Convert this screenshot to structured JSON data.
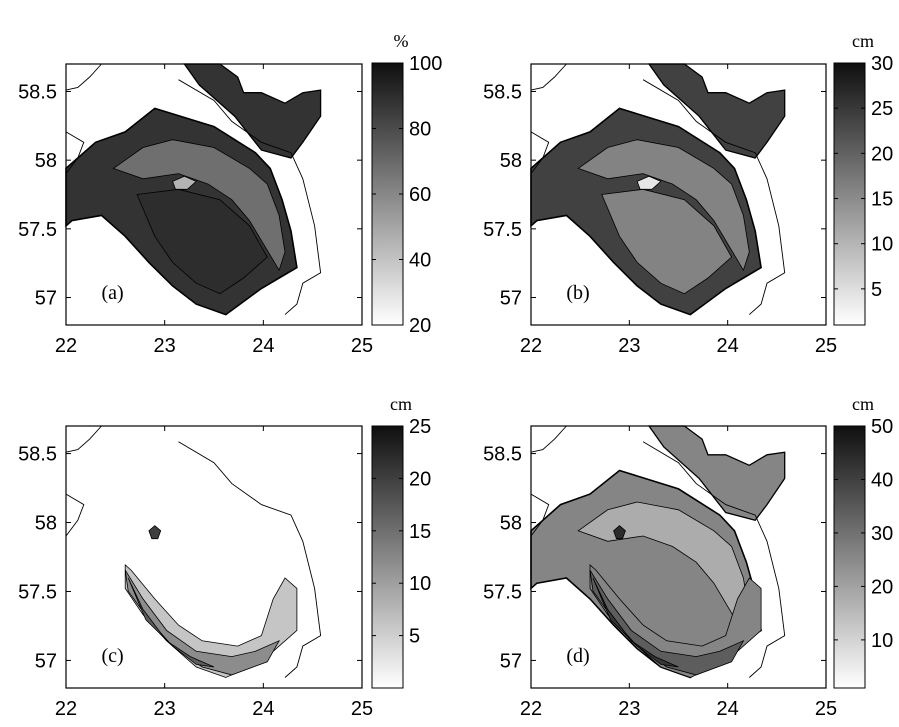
{
  "chart_data": [
    {
      "type": "heatmap",
      "panel_label": "(a)",
      "colorbar_unit": "%",
      "colorbar_ticks": [
        "20",
        "40",
        "60",
        "80",
        "100"
      ],
      "colorbar_range": [
        20,
        100
      ],
      "xlim": [
        22,
        25
      ],
      "ylim": [
        56.8,
        58.7
      ],
      "xticks": [
        "22",
        "23",
        "24",
        "25"
      ],
      "yticks": [
        "57",
        "57.5",
        "58",
        "58.5"
      ],
      "levels": [
        {
          "shape": "gulf",
          "value": 88
        },
        {
          "shape": "inner",
          "value": 68
        },
        {
          "shape": "core",
          "value": 90
        },
        {
          "shape": "island",
          "value": 45
        }
      ]
    },
    {
      "type": "heatmap",
      "panel_label": "(b)",
      "colorbar_unit": "cm",
      "colorbar_ticks": [
        "5",
        "10",
        "15",
        "20",
        "25",
        "30"
      ],
      "colorbar_range": [
        1,
        30
      ],
      "xlim": [
        22,
        25
      ],
      "ylim": [
        56.8,
        58.7
      ],
      "xticks": [
        "22",
        "23",
        "24",
        "25"
      ],
      "yticks": [
        "57",
        "57.5",
        "58",
        "58.5"
      ],
      "levels": [
        {
          "shape": "gulf",
          "value": 24
        },
        {
          "shape": "inner",
          "value": 16
        },
        {
          "shape": "core",
          "value": 16
        },
        {
          "shape": "island",
          "value": 4
        }
      ]
    },
    {
      "type": "heatmap",
      "panel_label": "(c)",
      "colorbar_unit": "cm",
      "colorbar_ticks": [
        "5",
        "10",
        "15",
        "20",
        "25"
      ],
      "colorbar_range": [
        0,
        25
      ],
      "xlim": [
        22,
        25
      ],
      "ylim": [
        56.8,
        58.7
      ],
      "xticks": [
        "22",
        "23",
        "24",
        "25"
      ],
      "yticks": [
        "57",
        "57.5",
        "58",
        "58.5"
      ],
      "levels": [
        {
          "shape": "southband1",
          "value": 6
        },
        {
          "shape": "southband2",
          "value": 12
        },
        {
          "shape": "southband3",
          "value": 17
        },
        {
          "shape": "hotspot",
          "value": 20
        }
      ]
    },
    {
      "type": "heatmap",
      "panel_label": "(d)",
      "colorbar_unit": "cm",
      "colorbar_ticks": [
        "10",
        "20",
        "30",
        "40",
        "50"
      ],
      "colorbar_range": [
        1,
        50
      ],
      "xlim": [
        22,
        25
      ],
      "ylim": [
        56.8,
        58.7
      ],
      "xticks": [
        "22",
        "23",
        "24",
        "25"
      ],
      "yticks": [
        "57",
        "57.5",
        "58",
        "58.5"
      ],
      "levels": [
        {
          "shape": "gulf",
          "value": 26
        },
        {
          "shape": "inner",
          "value": 18
        },
        {
          "shape": "southband1",
          "value": 26
        },
        {
          "shape": "southband2",
          "value": 34
        },
        {
          "shape": "southband3",
          "value": 42
        },
        {
          "shape": "hotspot",
          "value": 44
        }
      ]
    }
  ]
}
